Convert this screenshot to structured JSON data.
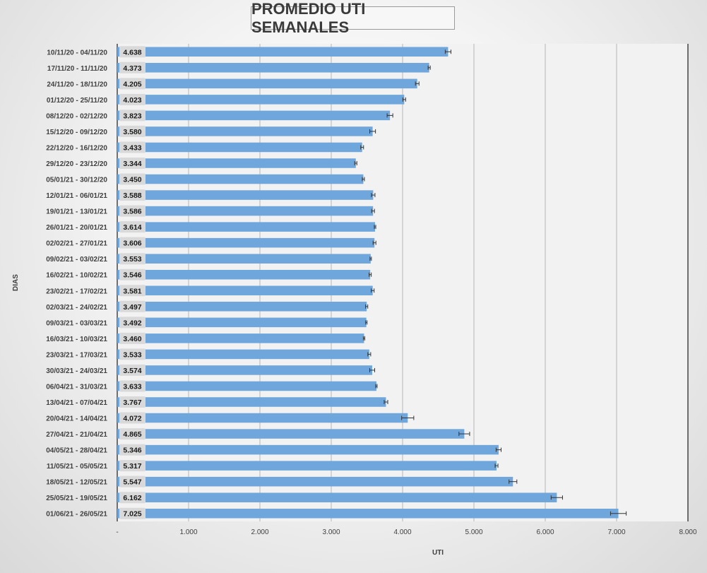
{
  "chart_data": {
    "type": "bar",
    "orientation": "horizontal",
    "title": "PROMEDIO UTI SEMANALES",
    "xlabel": "UTI",
    "ylabel": "DIAS",
    "xlim": [
      0,
      8000
    ],
    "x_ticks": [
      0,
      1000,
      2000,
      3000,
      4000,
      5000,
      6000,
      7000,
      8000
    ],
    "x_tick_labels": [
      "-",
      "1.000",
      "2.000",
      "3.000",
      "4.000",
      "5.000",
      "6.000",
      "7.000",
      "8.000"
    ],
    "grid": true,
    "error_bars": true,
    "bar_color": "#6fa6dc",
    "categories": [
      "10/11/20 - 04/11/20",
      "17/11/20 - 11/11/20",
      "24/11/20 - 18/11/20",
      "01/12/20 - 25/11/20",
      "08/12/20 - 02/12/20",
      "15/12/20 - 09/12/20",
      "22/12/20 - 16/12/20",
      "29/12/20 - 23/12/20",
      "05/01/21 - 30/12/20",
      "12/01/21 - 06/01/21",
      "19/01/21 - 13/01/21",
      "26/01/21 - 20/01/21",
      "02/02/21 - 27/01/21",
      "09/02/21 - 03/02/21",
      "16/02/21 - 10/02/21",
      "23/02/21 - 17/02/21",
      "02/03/21 - 24/02/21",
      "09/03/21 - 03/03/21",
      "16/03/21 - 10/03/21",
      "23/03/21 - 17/03/21",
      "30/03/21 - 24/03/21",
      "06/04/21 - 31/03/21",
      "13/04/21 - 07/04/21",
      "20/04/21 - 14/04/21",
      "27/04/21 - 21/04/21",
      "04/05/21 - 28/04/21",
      "11/05/21 - 05/05/21",
      "18/05/21 - 12/05/21",
      "25/05/21 - 19/05/21",
      "01/06/21 - 26/05/21"
    ],
    "values": [
      4638,
      4373,
      4205,
      4023,
      3823,
      3580,
      3433,
      3344,
      3450,
      3588,
      3586,
      3614,
      3606,
      3553,
      3546,
      3581,
      3497,
      3492,
      3460,
      3533,
      3574,
      3633,
      3767,
      4072,
      4865,
      5346,
      5317,
      5547,
      6162,
      7025
    ],
    "value_labels": [
      "4.638",
      "4.373",
      "4.205",
      "4.023",
      "3.823",
      "3.580",
      "3.433",
      "3.344",
      "3.450",
      "3.588",
      "3.586",
      "3.614",
      "3.606",
      "3.553",
      "3.546",
      "3.581",
      "3.497",
      "3.492",
      "3.460",
      "3.533",
      "3.574",
      "3.633",
      "3.767",
      "4.072",
      "4.865",
      "5.346",
      "5.317",
      "5.547",
      "6.162",
      "7.025"
    ],
    "errors": [
      40,
      15,
      25,
      20,
      40,
      40,
      20,
      15,
      15,
      25,
      20,
      10,
      20,
      10,
      15,
      20,
      15,
      10,
      10,
      20,
      35,
      10,
      25,
      85,
      75,
      35,
      20,
      55,
      80,
      110
    ]
  }
}
